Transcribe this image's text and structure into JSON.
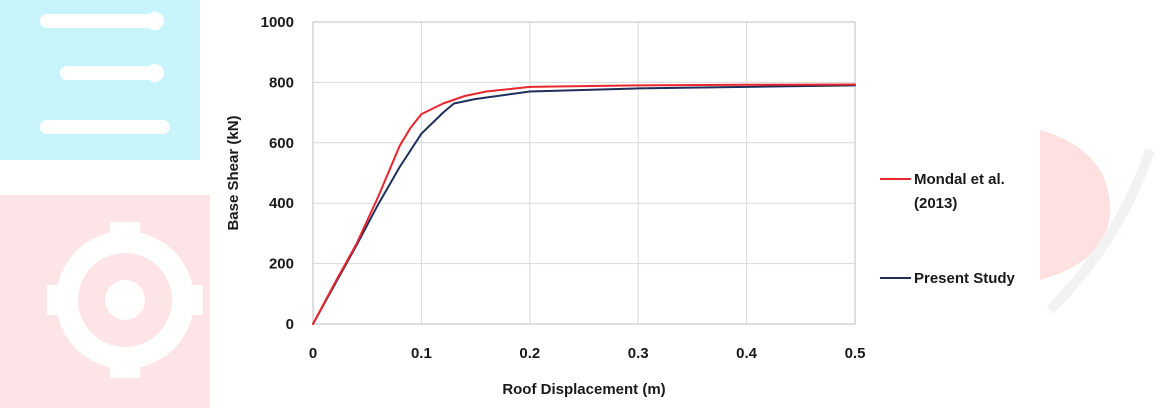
{
  "chart_data": {
    "type": "line",
    "title": "",
    "xlabel": "Roof Displacement (m)",
    "ylabel": "Base Shear (kN)",
    "xlim": [
      0,
      0.5
    ],
    "ylim": [
      0,
      1000
    ],
    "x_ticks": [
      "0",
      "0.1",
      "0.2",
      "0.3",
      "0.4",
      "0.5"
    ],
    "y_ticks": [
      "0",
      "200",
      "400",
      "600",
      "800",
      "1000"
    ],
    "grid": true,
    "legend_position": "right",
    "series": [
      {
        "name": "Mondal et al. (2013)",
        "name_lines": [
          "Mondal et al.",
          "(2013)"
        ],
        "color": "#e8262e",
        "x": [
          0,
          0.02,
          0.04,
          0.06,
          0.08,
          0.09,
          0.1,
          0.12,
          0.14,
          0.16,
          0.2,
          0.3,
          0.4,
          0.5
        ],
        "y": [
          0,
          135,
          265,
          420,
          590,
          650,
          695,
          730,
          755,
          770,
          785,
          790,
          792,
          793
        ]
      },
      {
        "name": "Present Study",
        "name_lines": [
          "Present Study"
        ],
        "color": "#1f2f5c",
        "x": [
          0,
          0.02,
          0.04,
          0.06,
          0.08,
          0.1,
          0.12,
          0.13,
          0.15,
          0.2,
          0.3,
          0.4,
          0.5
        ],
        "y": [
          0,
          130,
          260,
          395,
          520,
          630,
          700,
          730,
          745,
          770,
          780,
          785,
          790
        ]
      }
    ]
  },
  "watermark": {
    "cyan": "#c8f0f8",
    "pink": "#fde2e4"
  }
}
